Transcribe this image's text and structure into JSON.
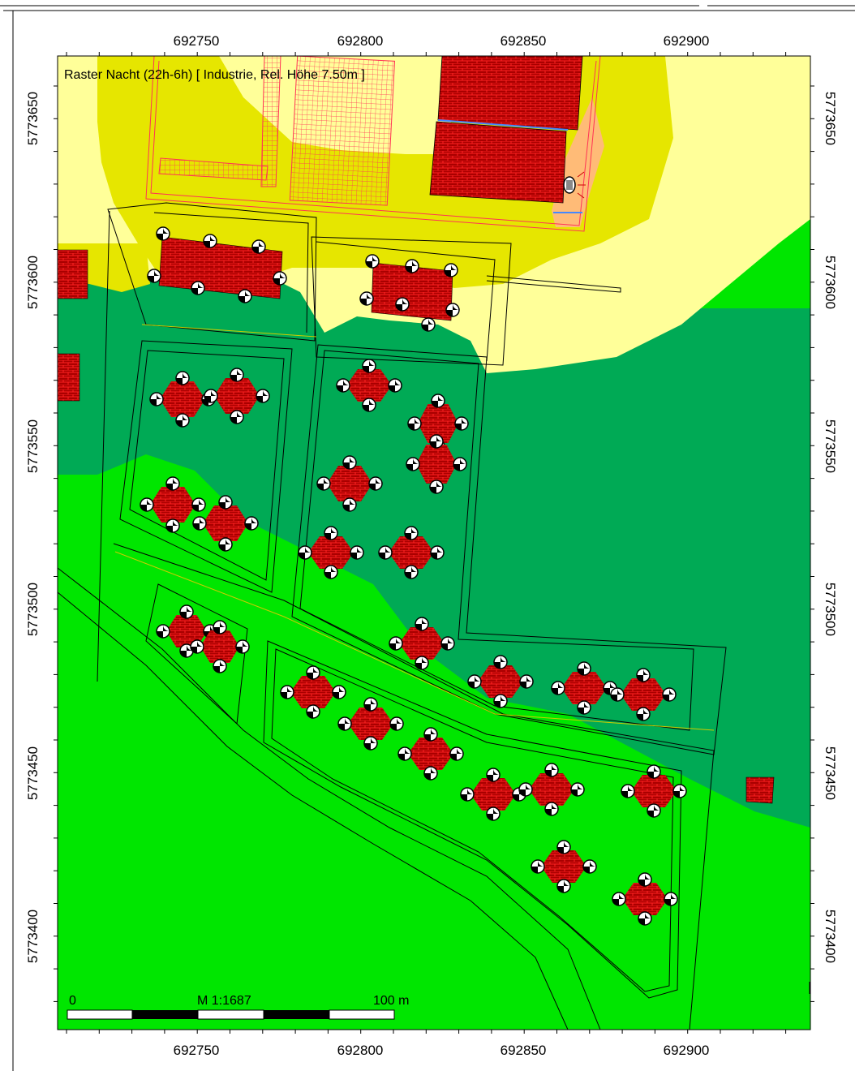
{
  "map": {
    "title": "Raster Nacht (22h-6h)  [ Industrie, Rel. Höhe  7.50m ]",
    "x_ticks": [
      "692750",
      "692800",
      "692850",
      "692900"
    ],
    "y_ticks": [
      "5773650",
      "5773600",
      "5773550",
      "5773500",
      "5773450",
      "5773400"
    ],
    "scale_bar": {
      "start": "0",
      "ratio": "M 1:1687",
      "end": "100 m"
    }
  },
  "colors": {
    "zone_pale_yellow": "#ffff99",
    "zone_yellow": "#e6e600",
    "zone_dark_green": "#00aa55",
    "zone_light_green": "#00e600",
    "zone_orange": "#ffbb77",
    "building_fill": "#aa0000",
    "building_brick": "#ff2222",
    "outline": "#000000",
    "planning_line": "#ff3355"
  },
  "icons": {
    "receiver": "receiver-icon",
    "source": "noise-source-icon"
  }
}
